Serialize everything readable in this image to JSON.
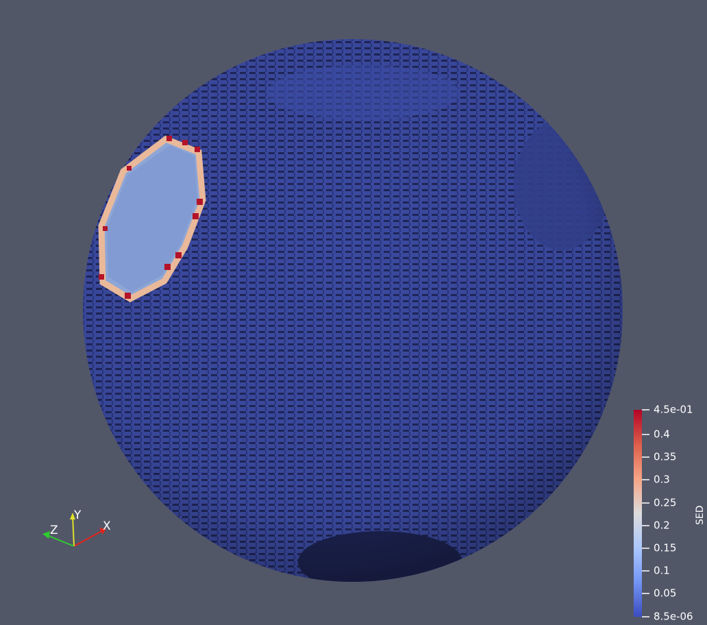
{
  "app": {
    "view": "3D render view",
    "background_color": "#525768"
  },
  "surface": {
    "field": "SED",
    "base_color": "#3b4aa0",
    "shadow_color": "#1f2659",
    "spot_fill_color": "#8ea6d6",
    "spot_ring_color": "#e9b99a",
    "spot_edge_color": "#b3142a"
  },
  "colorbar": {
    "title": "SED",
    "max_label": "4.5e-01",
    "min_label": "8.5e-06",
    "tick_labels": [
      "0.4",
      "0.35",
      "0.3",
      "0.25",
      "0.2",
      "0.15",
      "0.1",
      "0.05"
    ],
    "gradient_colors": [
      "#b40426",
      "#dd5f4b",
      "#f6a385",
      "#dddcdc",
      "#aac7fd",
      "#7396f5",
      "#3b4cc0"
    ]
  },
  "axes_triad": {
    "x_label": "X",
    "y_label": "Y",
    "z_label": "Z",
    "x_color": "#e5231a",
    "y_color": "#e0e02a",
    "z_color": "#2ecc2e"
  }
}
